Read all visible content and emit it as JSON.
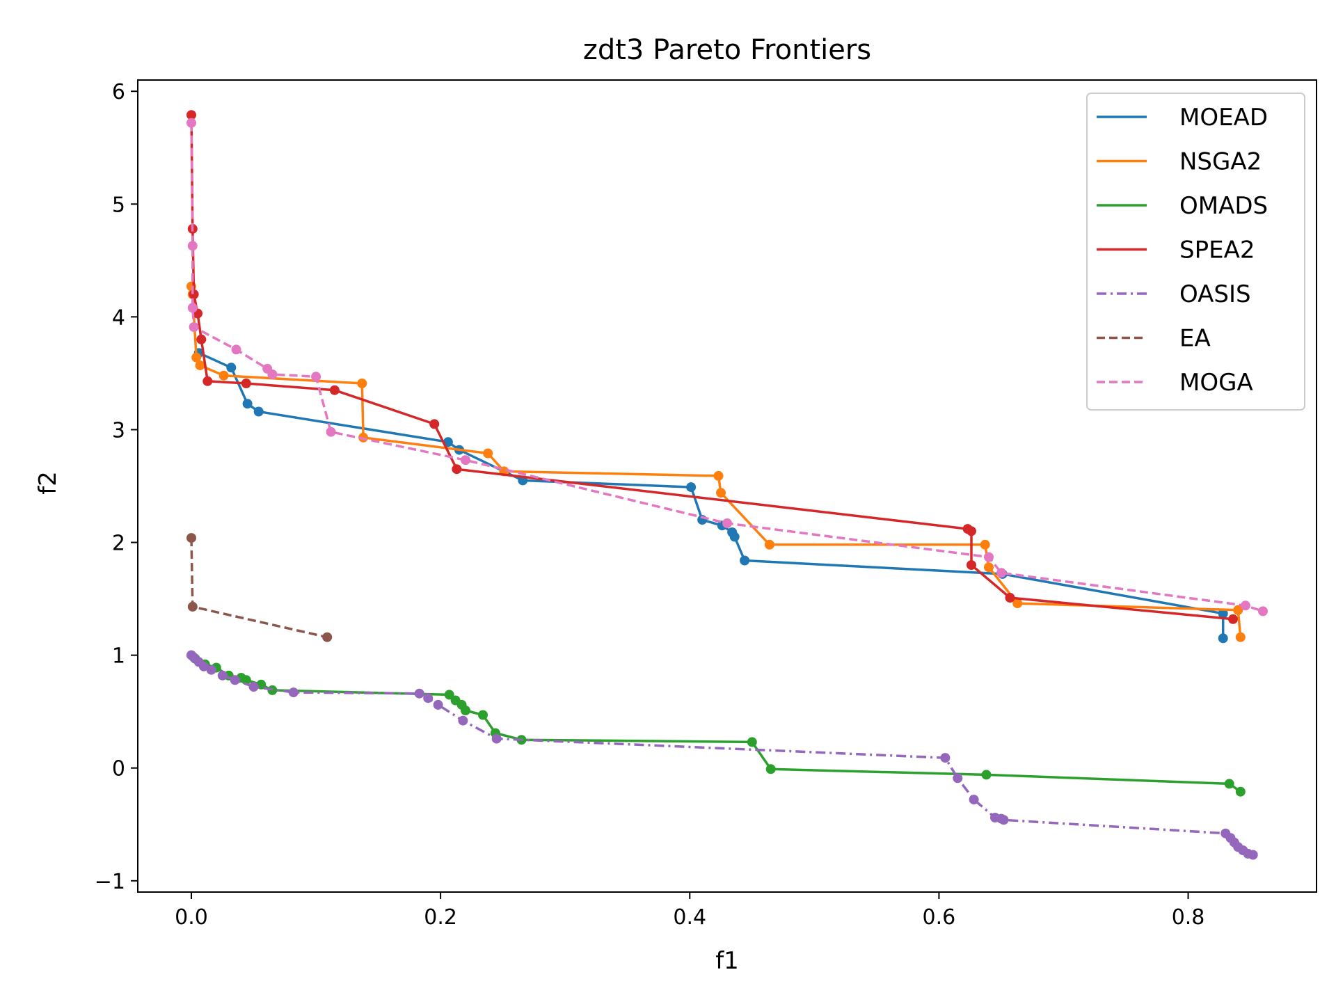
{
  "chart_data": {
    "type": "line",
    "title": "zdt3 Pareto Frontiers",
    "xlabel": "f1",
    "ylabel": "f2",
    "xlim": [
      -0.043,
      0.903
    ],
    "ylim": [
      -1.1,
      6.1
    ],
    "xticks": [
      0.0,
      0.2,
      0.4,
      0.6,
      0.8
    ],
    "xtick_labels": [
      "0.0",
      "0.2",
      "0.4",
      "0.6",
      "0.8"
    ],
    "yticks": [
      -1,
      0,
      1,
      2,
      3,
      4,
      5,
      6
    ],
    "ytick_labels": [
      "−1",
      "0",
      "1",
      "2",
      "3",
      "4",
      "5",
      "6"
    ],
    "grid": false,
    "legend_position": "top-right",
    "series": [
      {
        "name": "MOEAD",
        "color": "#1f77b4",
        "style": "solid",
        "points": [
          [
            0.006,
            3.68
          ],
          [
            0.032,
            3.55
          ],
          [
            0.045,
            3.23
          ],
          [
            0.054,
            3.16
          ],
          [
            0.206,
            2.89
          ],
          [
            0.215,
            2.82
          ],
          [
            0.266,
            2.55
          ],
          [
            0.401,
            2.49
          ],
          [
            0.41,
            2.2
          ],
          [
            0.426,
            2.15
          ],
          [
            0.434,
            2.09
          ],
          [
            0.436,
            2.05
          ],
          [
            0.444,
            1.84
          ],
          [
            0.651,
            1.72
          ],
          [
            0.828,
            1.37
          ],
          [
            0.828,
            1.15
          ]
        ]
      },
      {
        "name": "NSGA2",
        "color": "#ff7f0e",
        "style": "solid",
        "points": [
          [
            0.0,
            4.27
          ],
          [
            0.001,
            4.2
          ],
          [
            0.004,
            3.64
          ],
          [
            0.007,
            3.57
          ],
          [
            0.026,
            3.48
          ],
          [
            0.137,
            3.41
          ],
          [
            0.138,
            2.93
          ],
          [
            0.238,
            2.79
          ],
          [
            0.251,
            2.63
          ],
          [
            0.423,
            2.59
          ],
          [
            0.425,
            2.44
          ],
          [
            0.464,
            1.98
          ],
          [
            0.637,
            1.98
          ],
          [
            0.64,
            1.78
          ],
          [
            0.663,
            1.46
          ],
          [
            0.84,
            1.4
          ],
          [
            0.842,
            1.16
          ]
        ]
      },
      {
        "name": "OMADS",
        "color": "#2ca02c",
        "style": "solid",
        "points": [
          [
            0.0,
            1.0
          ],
          [
            0.003,
            0.97
          ],
          [
            0.011,
            0.92
          ],
          [
            0.02,
            0.89
          ],
          [
            0.03,
            0.82
          ],
          [
            0.04,
            0.8
          ],
          [
            0.044,
            0.78
          ],
          [
            0.056,
            0.74
          ],
          [
            0.065,
            0.69
          ],
          [
            0.207,
            0.65
          ],
          [
            0.212,
            0.6
          ],
          [
            0.217,
            0.56
          ],
          [
            0.22,
            0.51
          ],
          [
            0.234,
            0.47
          ],
          [
            0.244,
            0.31
          ],
          [
            0.265,
            0.25
          ],
          [
            0.45,
            0.23
          ],
          [
            0.465,
            -0.01
          ],
          [
            0.638,
            -0.06
          ],
          [
            0.833,
            -0.14
          ],
          [
            0.842,
            -0.21
          ]
        ]
      },
      {
        "name": "SPEA2",
        "color": "#d62728",
        "style": "solid",
        "points": [
          [
            0.0,
            5.79
          ],
          [
            0.001,
            4.78
          ],
          [
            0.002,
            4.2
          ],
          [
            0.005,
            4.03
          ],
          [
            0.008,
            3.8
          ],
          [
            0.013,
            3.43
          ],
          [
            0.044,
            3.41
          ],
          [
            0.115,
            3.35
          ],
          [
            0.195,
            3.05
          ],
          [
            0.213,
            2.65
          ],
          [
            0.623,
            2.12
          ],
          [
            0.626,
            2.1
          ],
          [
            0.626,
            1.8
          ],
          [
            0.657,
            1.51
          ],
          [
            0.836,
            1.32
          ]
        ]
      },
      {
        "name": "OASIS",
        "color": "#9467bd",
        "style": "dashdot",
        "points": [
          [
            0.0,
            1.0
          ],
          [
            0.002,
            0.98
          ],
          [
            0.006,
            0.94
          ],
          [
            0.01,
            0.9
          ],
          [
            0.016,
            0.87
          ],
          [
            0.025,
            0.82
          ],
          [
            0.035,
            0.78
          ],
          [
            0.05,
            0.72
          ],
          [
            0.082,
            0.67
          ],
          [
            0.183,
            0.66
          ],
          [
            0.19,
            0.62
          ],
          [
            0.198,
            0.56
          ],
          [
            0.218,
            0.42
          ],
          [
            0.245,
            0.26
          ],
          [
            0.605,
            0.09
          ],
          [
            0.615,
            -0.09
          ],
          [
            0.628,
            -0.28
          ],
          [
            0.645,
            -0.44
          ],
          [
            0.65,
            -0.45
          ],
          [
            0.652,
            -0.46
          ],
          [
            0.83,
            -0.58
          ],
          [
            0.834,
            -0.62
          ],
          [
            0.837,
            -0.66
          ],
          [
            0.84,
            -0.7
          ],
          [
            0.844,
            -0.73
          ],
          [
            0.848,
            -0.76
          ],
          [
            0.852,
            -0.77
          ]
        ]
      },
      {
        "name": "EA",
        "color": "#8c564b",
        "style": "dashed",
        "points": [
          [
            0.0,
            2.04
          ],
          [
            0.001,
            1.43
          ],
          [
            0.109,
            1.16
          ]
        ]
      },
      {
        "name": "MOGA",
        "color": "#e377c2",
        "style": "dashed",
        "points": [
          [
            0.0,
            5.72
          ],
          [
            0.001,
            4.63
          ],
          [
            0.001,
            4.08
          ],
          [
            0.002,
            3.91
          ],
          [
            0.036,
            3.71
          ],
          [
            0.061,
            3.54
          ],
          [
            0.065,
            3.49
          ],
          [
            0.1,
            3.47
          ],
          [
            0.112,
            2.98
          ],
          [
            0.22,
            2.73
          ],
          [
            0.43,
            2.17
          ],
          [
            0.64,
            1.87
          ],
          [
            0.65,
            1.73
          ],
          [
            0.846,
            1.44
          ],
          [
            0.86,
            1.39
          ]
        ]
      }
    ]
  }
}
